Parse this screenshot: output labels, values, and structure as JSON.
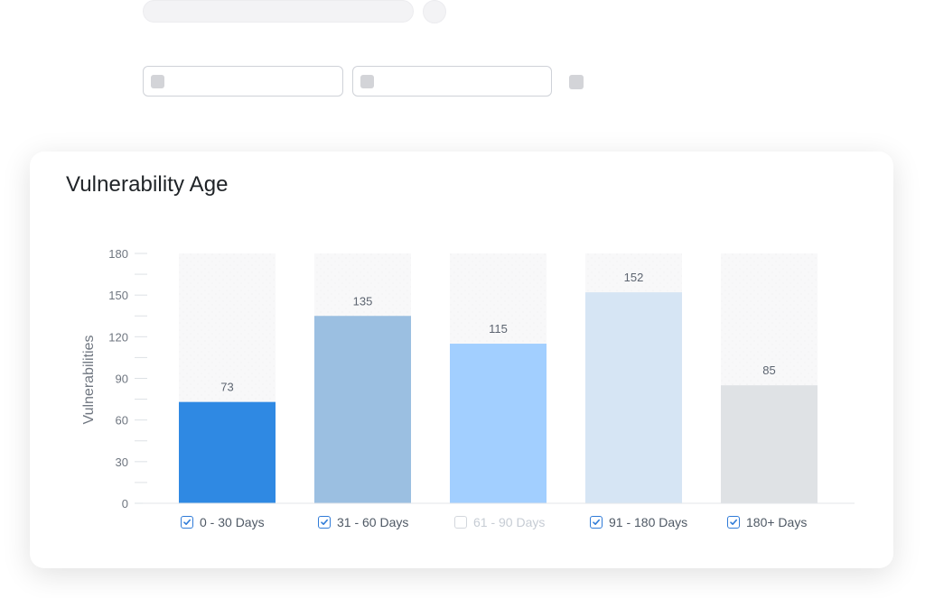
{
  "card": {
    "title": "Vulnerability Age"
  },
  "colors": {
    "background_bar": "#f7f7f8",
    "axis": "#e3e6ea",
    "tick": "#dde1e5",
    "checkbox_checked": "#2f7bd8",
    "checkbox_unchecked": "#d3d7dd"
  },
  "chart_data": {
    "type": "bar",
    "title": "Vulnerability Age",
    "xlabel": "",
    "ylabel": "Vulnerabilities",
    "ylim": [
      0,
      180
    ],
    "yticks": [
      0,
      30,
      60,
      90,
      120,
      150,
      180
    ],
    "categories": [
      "0 - 30 Days",
      "31 - 60 Days",
      "61 - 90 Days",
      "91 - 180 Days",
      "180+ Days"
    ],
    "values": [
      73,
      135,
      115,
      152,
      85
    ],
    "bar_colors": [
      "#2f89e3",
      "#9bbfe1",
      "#a2cfff",
      "#d6e5f4",
      "#dfe2e5"
    ],
    "legend_checked": [
      true,
      true,
      false,
      true,
      true
    ],
    "grid": false,
    "legend_position": "bottom"
  }
}
